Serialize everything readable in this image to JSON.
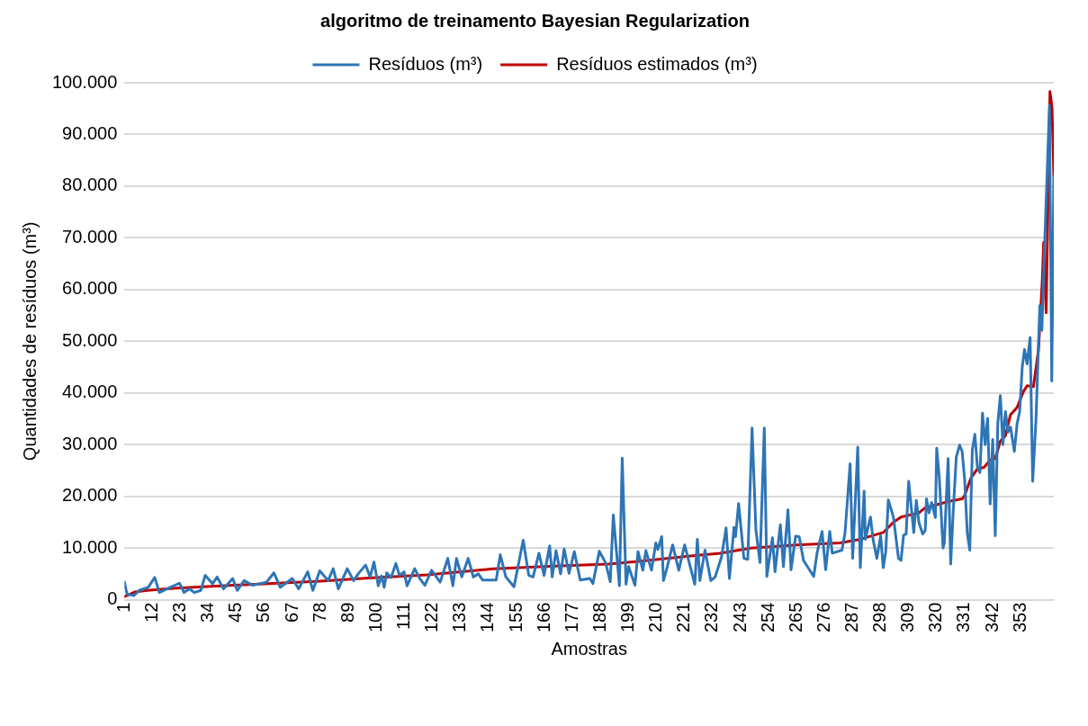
{
  "chart_data": {
    "type": "line",
    "title": "algoritmo de treinamento Bayesian Regularization",
    "xlabel": "Amostras",
    "ylabel": "Quantidades de resíduos (m³)",
    "legend": "top",
    "grid": "y",
    "marker": "none",
    "line_style": "solid",
    "xlim": [
      1,
      366
    ],
    "xticks": [
      1,
      12,
      23,
      34,
      45,
      56,
      67,
      78,
      89,
      100,
      111,
      122,
      133,
      144,
      155,
      166,
      177,
      188,
      199,
      210,
      221,
      232,
      243,
      254,
      265,
      276,
      287,
      298,
      309,
      320,
      331,
      342,
      353
    ],
    "ylim": [
      0,
      100000
    ],
    "yticks": [
      {
        "value": 0,
        "label": "0"
      },
      {
        "value": 10000,
        "label": "10.000"
      },
      {
        "value": 20000,
        "label": "20.000"
      },
      {
        "value": 30000,
        "label": "30.000"
      },
      {
        "value": 40000,
        "label": "40.000"
      },
      {
        "value": 50000,
        "label": "50.000"
      },
      {
        "value": 60000,
        "label": "60.000"
      },
      {
        "value": 70000,
        "label": "70.000"
      },
      {
        "value": 80000,
        "label": "80.000"
      },
      {
        "value": 90000,
        "label": "90.000"
      },
      {
        "value": 100000,
        "label": "100.000"
      }
    ],
    "series": [
      {
        "name": "Resíduos (m³)",
        "color": "#2e75b6",
        "x": [
          1,
          2,
          4.6,
          6.8,
          10.3,
          12.9,
          14.7,
          19,
          22.6,
          24.4,
          26.6,
          28.4,
          31,
          32.7,
          35.6,
          37.4,
          39.9,
          43.5,
          45.3,
          48,
          51.3,
          54.3,
          56.8,
          59.7,
          62.2,
          66.9,
          69.4,
          73,
          75,
          77.7,
          81,
          83,
          85,
          88.5,
          91,
          92.8,
          95.7,
          97.5,
          99,
          100.7,
          102,
          103,
          104,
          105.7,
          107.6,
          109,
          110.8,
          112,
          115,
          117,
          119,
          121.6,
          125,
          128,
          130,
          131.4,
          133.5,
          136,
          138,
          140,
          141.7,
          147,
          148.6,
          150.8,
          154,
          157.6,
          159.8,
          161.5,
          163.8,
          165.8,
          168,
          169,
          170.5,
          172.3,
          173.7,
          175.6,
          177.7,
          180,
          183.8,
          185,
          187.5,
          190,
          191.8,
          193,
          195.4,
          196.5,
          198,
          199,
          201.5,
          202.7,
          204.6,
          205.8,
          208,
          209.7,
          210.5,
          212,
          212.7,
          214,
          216.3,
          218.7,
          221,
          225,
          226,
          227,
          229,
          231.3,
          233,
          235.5,
          237.3,
          238.6,
          240.4,
          241,
          242.2,
          244.3,
          245.8,
          247.5,
          249,
          250.6,
          252.3,
          253.3,
          255.5,
          256.5,
          258.6,
          259.8,
          261.6,
          262.8,
          264.6,
          266,
          267.7,
          271.7,
          273,
          275,
          276.4,
          278,
          279,
          282.8,
          284,
          286,
          287,
          289,
          290,
          291.5,
          292,
          294,
          295,
          296.5,
          298,
          299,
          300,
          301,
          303,
          305,
          306,
          307,
          308,
          309,
          311,
          312,
          313,
          314.5,
          315.5,
          316,
          317,
          318,
          319.5,
          320,
          321,
          322.5,
          323,
          324.5,
          325.5,
          326.5,
          327.7,
          329,
          330,
          331,
          332,
          333,
          334,
          335,
          336,
          337,
          338,
          339,
          340,
          341,
          342,
          343,
          344,
          345,
          346,
          347,
          348,
          349,
          350.5,
          351.6,
          352.6,
          353.6,
          354.5,
          355.5,
          356.7,
          357.7,
          359,
          360.5,
          361.3,
          362.5,
          364.3,
          365.2,
          366
        ],
        "values": [
          3400,
          1100,
          800,
          1800,
          2400,
          4300,
          1400,
          2400,
          3200,
          1400,
          2100,
          1400,
          1800,
          4700,
          3100,
          4400,
          2100,
          4100,
          1800,
          3700,
          2800,
          3100,
          3400,
          5200,
          2400,
          4100,
          2100,
          5400,
          1800,
          5600,
          3700,
          6000,
          2100,
          6000,
          3700,
          5000,
          6700,
          4400,
          7300,
          2700,
          4600,
          2400,
          5200,
          4300,
          7000,
          4700,
          5400,
          2700,
          6000,
          4100,
          2800,
          5700,
          3400,
          8000,
          2700,
          8000,
          4400,
          8000,
          4400,
          5000,
          3800,
          3800,
          8700,
          4400,
          2500,
          11500,
          4700,
          4400,
          9000,
          4700,
          10400,
          4400,
          9500,
          5000,
          9800,
          5100,
          9300,
          3800,
          4100,
          3100,
          9400,
          7100,
          3500,
          16400,
          2700,
          27400,
          3000,
          6400,
          2800,
          9300,
          5700,
          9500,
          5700,
          11000,
          9700,
          12200,
          3700,
          6000,
          10600,
          5700,
          10600,
          3000,
          11700,
          3700,
          9600,
          3700,
          4400,
          8300,
          13900,
          4100,
          14000,
          12200,
          18600,
          8000,
          7800,
          33200,
          13500,
          7200,
          33200,
          4500,
          12000,
          5400,
          14500,
          6400,
          17400,
          5800,
          12300,
          12200,
          7600,
          4500,
          9000,
          13200,
          5800,
          13200,
          9000,
          9600,
          12900,
          26300,
          8000,
          29500,
          6200,
          21000,
          11700,
          16000,
          11700,
          8000,
          12400,
          6200,
          9300,
          19300,
          16000,
          8000,
          7600,
          12500,
          12700,
          22900,
          13000,
          19200,
          15000,
          12700,
          13400,
          19500,
          16800,
          18800,
          15900,
          29300,
          23900,
          10000,
          11000,
          27300,
          6900,
          17100,
          27600,
          29900,
          28700,
          23200,
          13000,
          9600,
          29000,
          32000,
          25600,
          24600,
          36100,
          30000,
          35100,
          18500,
          31000,
          12400,
          34100,
          39500,
          30000,
          36400,
          32400,
          33400,
          28700,
          34100,
          36400,
          45000,
          48400,
          45600,
          50700,
          22900,
          34800,
          56900,
          52100,
          70000,
          95600,
          42300,
          82000
        ]
      },
      {
        "name": "Resíduos estimados (m³)",
        "color": "#c00000",
        "x": [
          1,
          5,
          10,
          20,
          35,
          52,
          78,
          97,
          120,
          146,
          170,
          191,
          203,
          220,
          235,
          247,
          265,
          282,
          290,
          299,
          303,
          306,
          313,
          315.5,
          321,
          324.5,
          330,
          331,
          333.5,
          336,
          338.6,
          341,
          343,
          345,
          347,
          349,
          351.6,
          354,
          355.5,
          358,
          360,
          361.5,
          362,
          363,
          364.5,
          365.3,
          366
        ],
        "values": [
          600,
          1500,
          1800,
          2200,
          2600,
          3000,
          3600,
          4200,
          4800,
          6000,
          6500,
          6900,
          7400,
          8300,
          9000,
          10000,
          10600,
          11000,
          11700,
          13000,
          15000,
          16000,
          16800,
          17800,
          18500,
          19000,
          19500,
          20200,
          23600,
          25300,
          25600,
          27000,
          27300,
          30700,
          31700,
          35800,
          37200,
          40200,
          41400,
          41200,
          48400,
          62000,
          69100,
          55500,
          98300,
          95200,
          82000
        ]
      }
    ]
  }
}
